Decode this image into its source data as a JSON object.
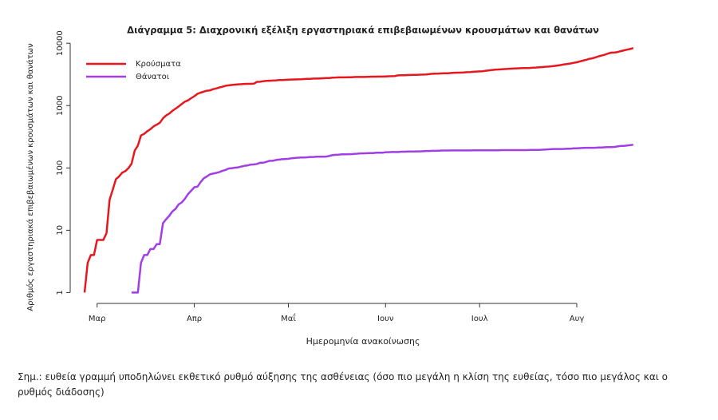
{
  "chart_data": {
    "type": "line",
    "title": "Διάγραμμα 5: Διαχρονική εξέλιξη εργαστηριακά επιβεβαιωμένων κρουσμάτων και θανάτων",
    "y_label": "Αριθμός εργαστηριακά επιβεβαιωμένων κρουσμάτων και θανάτων",
    "x_label": "Ημερομηνία ανακοίνωσης",
    "note": "Σημ.: ευθεία γραμμή υποδηλώνει εκθετικό ρυθμό αύξησης της ασθένειας (όσο πιο μεγάλη η κλίση της ευθείας, τόσο πιο μεγάλος και ο ρυθμός διάδοσης)",
    "log_scale": true,
    "legend": "top-left",
    "ylim": [
      0.67,
      12000
    ],
    "yticks": [
      1,
      10,
      100,
      1000,
      10000
    ],
    "categories": [
      null,
      null,
      null,
      null,
      "Μαρ",
      null,
      null,
      null,
      null,
      null,
      null,
      null,
      null,
      null,
      null,
      null,
      null,
      null,
      null,
      null,
      null,
      null,
      null,
      null,
      null,
      null,
      null,
      null,
      null,
      null,
      null,
      null,
      null,
      null,
      null,
      "Απρ",
      null,
      null,
      null,
      null,
      null,
      null,
      null,
      null,
      null,
      null,
      null,
      null,
      null,
      null,
      null,
      null,
      null,
      null,
      null,
      null,
      null,
      null,
      null,
      null,
      null,
      null,
      null,
      null,
      null,
      "Μαΐ",
      null,
      null,
      null,
      null,
      null,
      null,
      null,
      null,
      null,
      null,
      null,
      null,
      null,
      null,
      null,
      null,
      null,
      null,
      null,
      null,
      null,
      null,
      null,
      null,
      null,
      null,
      null,
      null,
      null,
      null,
      "Ιουν",
      null,
      null,
      null,
      null,
      null,
      null,
      null,
      null,
      null,
      null,
      null,
      null,
      null,
      null,
      null,
      null,
      null,
      null,
      null,
      null,
      null,
      null,
      null,
      null,
      null,
      null,
      null,
      null,
      null,
      "Ιουλ",
      null,
      null,
      null,
      null,
      null,
      null,
      null,
      null,
      null,
      null,
      null,
      null,
      null,
      null,
      null,
      null,
      null,
      null,
      null,
      null,
      null,
      null,
      null,
      null,
      null,
      null,
      null,
      null,
      null,
      null,
      "Αυγ",
      null,
      null,
      null,
      null,
      null,
      null,
      null,
      null,
      null,
      null,
      null,
      null,
      null,
      null,
      null,
      null,
      null,
      null
    ],
    "series": [
      {
        "name": "Κρούσματα",
        "color": "#e8171e",
        "values": [
          1,
          3,
          4,
          4,
          7,
          7,
          7,
          9,
          31,
          45,
          66,
          73,
          84,
          89,
          99,
          117,
          190,
          228,
          331,
          352,
          387,
          418,
          464,
          495,
          530,
          624,
          695,
          743,
          821,
          892,
          966,
          1061,
          1156,
          1212,
          1314,
          1415,
          1544,
          1613,
          1673,
          1735,
          1755,
          1832,
          1884,
          1955,
          2011,
          2081,
          2114,
          2145,
          2170,
          2192,
          2207,
          2224,
          2235,
          2235,
          2245,
          2401,
          2408,
          2463,
          2490,
          2506,
          2517,
          2534,
          2566,
          2576,
          2591,
          2612,
          2620,
          2626,
          2632,
          2642,
          2663,
          2678,
          2691,
          2710,
          2716,
          2726,
          2744,
          2760,
          2770,
          2810,
          2819,
          2834,
          2836,
          2840,
          2850,
          2853,
          2873,
          2876,
          2878,
          2882,
          2892,
          2906,
          2909,
          2915,
          2917,
          2918,
          2937,
          2952,
          2967,
          2980,
          3049,
          3058,
          3068,
          3088,
          3102,
          3112,
          3121,
          3134,
          3148,
          3166,
          3203,
          3237,
          3256,
          3267,
          3287,
          3302,
          3310,
          3340,
          3366,
          3376,
          3390,
          3409,
          3432,
          3458,
          3486,
          3519,
          3542,
          3562,
          3626,
          3672,
          3732,
          3772,
          3803,
          3826,
          3850,
          3878,
          3908,
          3940,
          3964,
          3983,
          3990,
          4007,
          4012,
          4048,
          4077,
          4110,
          4155,
          4193,
          4227,
          4279,
          4336,
          4401,
          4477,
          4587,
          4662,
          4737,
          4855,
          4957,
          5123,
          5270,
          5421,
          5623,
          5747,
          5942,
          6177,
          6381,
          6570,
          6858,
          7069,
          7123,
          7222,
          7472,
          7684,
          7887,
          8080,
          8381
        ]
      },
      {
        "name": "Θάνατοι",
        "color": "#a23ee8",
        "values": [
          null,
          null,
          null,
          null,
          null,
          null,
          null,
          null,
          null,
          null,
          null,
          null,
          null,
          null,
          null,
          1,
          1,
          1,
          3,
          4,
          4,
          5,
          5,
          6,
          6,
          13,
          15,
          17,
          20,
          22,
          26,
          28,
          32,
          38,
          43,
          49,
          50,
          59,
          68,
          73,
          79,
          81,
          83,
          86,
          90,
          93,
          98,
          99,
          101,
          102,
          105,
          108,
          110,
          113,
          114,
          116,
          121,
          121,
          125,
          130,
          130,
          134,
          136,
          138,
          139,
          140,
          143,
          144,
          146,
          147,
          147,
          148,
          150,
          150,
          151,
          151,
          151,
          152,
          155,
          160,
          162,
          163,
          165,
          165,
          166,
          166,
          168,
          169,
          171,
          171,
          172,
          173,
          173,
          175,
          175,
          175,
          179,
          179,
          180,
          180,
          180,
          182,
          182,
          183,
          183,
          183,
          184,
          184,
          185,
          187,
          187,
          188,
          188,
          189,
          190,
          190,
          190,
          191,
          191,
          191,
          191,
          191,
          191,
          191,
          192,
          192,
          192,
          192,
          192,
          192,
          192,
          192,
          192,
          193,
          193,
          193,
          193,
          193,
          193,
          193,
          193,
          193,
          194,
          194,
          194,
          195,
          196,
          197,
          199,
          200,
          201,
          201,
          201,
          202,
          203,
          203,
          206,
          206,
          208,
          209,
          210,
          210,
          210,
          211,
          212,
          213,
          215,
          216,
          216,
          217,
          221,
          225,
          226,
          229,
          232,
          235
        ]
      }
    ]
  }
}
